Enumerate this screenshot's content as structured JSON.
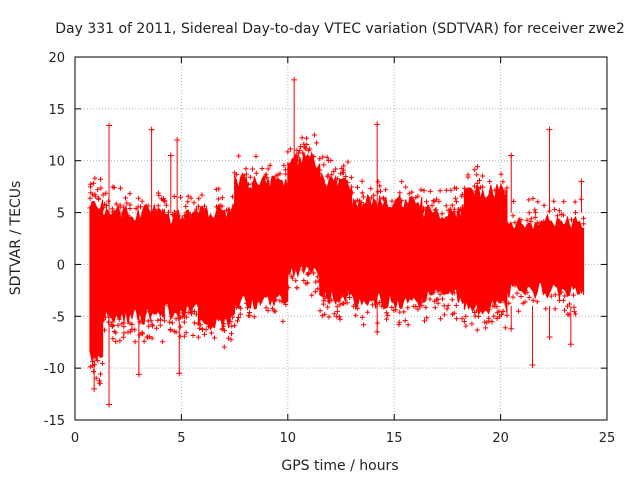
{
  "chart_data": {
    "type": "scatter",
    "title": "Day 331 of 2011, Sidereal Day-to-day VTEC variation (SDTVAR) for receiver zwe2",
    "xlabel": "GPS time / hours",
    "ylabel": "SDTVAR / TECUs",
    "xlim": [
      0,
      25
    ],
    "ylim": [
      -15,
      20
    ],
    "xticks": [
      0,
      5,
      10,
      15,
      20,
      25
    ],
    "yticks": [
      -15,
      -10,
      -5,
      0,
      5,
      10,
      15,
      20
    ],
    "grid": true,
    "marker": "+",
    "series": [
      {
        "name": "SDTVAR",
        "color": "#ff0000",
        "data_range": [
          0.7,
          23.9
        ],
        "segments": [
          {
            "x": [
              0.7,
              1.3
            ],
            "upper": 6,
            "lower": -9
          },
          {
            "x": [
              1.3,
              2.3
            ],
            "upper": 5,
            "lower": -5
          },
          {
            "x": [
              2.3,
              4.2
            ],
            "upper": 5,
            "lower": -5
          },
          {
            "x": [
              4.2,
              5.8
            ],
            "upper": 4.5,
            "lower": -4.5
          },
          {
            "x": [
              5.8,
              7.5
            ],
            "upper": 5,
            "lower": -5.5
          },
          {
            "x": [
              7.5,
              10.0
            ],
            "upper": 8,
            "lower": -3.5
          },
          {
            "x": [
              10.0,
              11.5
            ],
            "upper": 10,
            "lower": -0.5
          },
          {
            "x": [
              11.5,
              13.0
            ],
            "upper": 8,
            "lower": -3
          },
          {
            "x": [
              13.0,
              16.3
            ],
            "upper": 6,
            "lower": -3.5
          },
          {
            "x": [
              16.3,
              18.3
            ],
            "upper": 5,
            "lower": -3
          },
          {
            "x": [
              18.3,
              20.3
            ],
            "upper": 7,
            "lower": -4
          },
          {
            "x": [
              20.3,
              23.9
            ],
            "upper": 4,
            "lower": -2.5
          }
        ],
        "spikes": [
          {
            "x": 0.9,
            "y": -12
          },
          {
            "x": 1.6,
            "y": 13.4
          },
          {
            "x": 1.6,
            "y": -13.5
          },
          {
            "x": 3.0,
            "y": -10.6
          },
          {
            "x": 3.6,
            "y": 13
          },
          {
            "x": 4.5,
            "y": 10.5
          },
          {
            "x": 4.8,
            "y": 12
          },
          {
            "x": 4.9,
            "y": -10.5
          },
          {
            "x": 10.3,
            "y": 17.8
          },
          {
            "x": 14.2,
            "y": 13.5
          },
          {
            "x": 14.2,
            "y": -6.5
          },
          {
            "x": 20.5,
            "y": 10.5
          },
          {
            "x": 20.5,
            "y": -6.2
          },
          {
            "x": 21.5,
            "y": -9.7
          },
          {
            "x": 22.3,
            "y": 13
          },
          {
            "x": 22.3,
            "y": -7
          },
          {
            "x": 23.3,
            "y": -7.7
          },
          {
            "x": 23.8,
            "y": 8
          }
        ]
      }
    ]
  }
}
